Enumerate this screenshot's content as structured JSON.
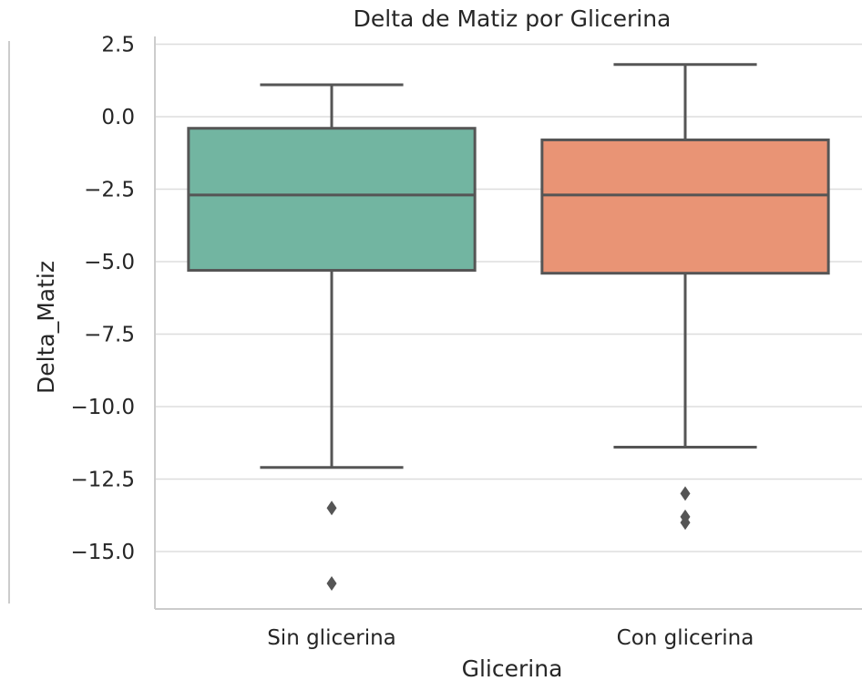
{
  "chart_data": {
    "type": "box",
    "title": "Delta de Matiz por Glicerina",
    "xlabel": "Glicerina",
    "ylabel": "Delta_Matiz",
    "ylim": [
      -16.7,
      2.8
    ],
    "yticks": [
      2.5,
      0.0,
      -2.5,
      -5.0,
      -7.5,
      -10.0,
      -12.5,
      -15.0
    ],
    "ytick_labels": [
      "2.5",
      "0.0",
      "−2.5",
      "−5.0",
      "−7.5",
      "−10.0",
      "−12.5",
      "−15.0"
    ],
    "grid": true,
    "categories": [
      "Sin glicerina",
      "Con glicerina"
    ],
    "boxes": [
      {
        "category": "Sin glicerina",
        "whisker_low": -12.1,
        "q1": -5.3,
        "median": -2.7,
        "q3": -0.4,
        "whisker_high": 1.1,
        "outliers": [
          -13.5,
          -16.1
        ],
        "color": "#72b5a1"
      },
      {
        "category": "Con glicerina",
        "whisker_low": -11.4,
        "q1": -5.4,
        "median": -2.7,
        "q3": -0.8,
        "whisker_high": 1.8,
        "outliers": [
          -13.0,
          -13.8,
          -14.0
        ],
        "color": "#e99475"
      }
    ],
    "line_color": "#555555",
    "grid_color": "#dddddd"
  }
}
